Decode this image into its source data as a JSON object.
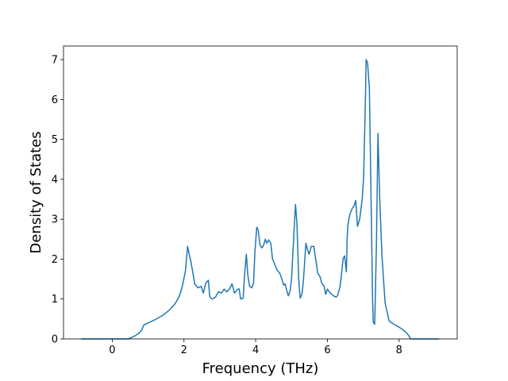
{
  "chart_data": {
    "type": "line",
    "xlabel": "Frequency (THz)",
    "ylabel": "Density of States",
    "x": [
      -0.86,
      0.42,
      0.53,
      0.64,
      0.75,
      0.82,
      0.88,
      0.95,
      1.19,
      1.42,
      1.59,
      1.75,
      1.86,
      1.95,
      2.04,
      2.1,
      2.15,
      2.19,
      2.26,
      2.3,
      2.39,
      2.48,
      2.54,
      2.61,
      2.68,
      2.72,
      2.79,
      2.88,
      2.96,
      3.05,
      3.12,
      3.19,
      3.27,
      3.34,
      3.41,
      3.5,
      3.54,
      3.58,
      3.65,
      3.69,
      3.74,
      3.78,
      3.83,
      3.89,
      3.94,
      3.98,
      4.03,
      4.07,
      4.12,
      4.18,
      4.23,
      4.27,
      4.31,
      4.36,
      4.42,
      4.47,
      4.54,
      4.6,
      4.67,
      4.73,
      4.78,
      4.82,
      4.87,
      4.91,
      4.96,
      5.0,
      5.04,
      5.11,
      5.15,
      5.2,
      5.24,
      5.29,
      5.33,
      5.4,
      5.44,
      5.49,
      5.55,
      5.62,
      5.69,
      5.73,
      5.8,
      5.84,
      5.91,
      5.95,
      6.0,
      6.08,
      6.17,
      6.24,
      6.28,
      6.35,
      6.39,
      6.44,
      6.48,
      6.53,
      6.55,
      6.57,
      6.62,
      6.68,
      6.75,
      6.79,
      6.84,
      6.9,
      6.97,
      7.01,
      7.06,
      7.08,
      7.12,
      7.17,
      7.21,
      7.26,
      7.28,
      7.32,
      7.37,
      7.41,
      7.46,
      7.52,
      7.61,
      7.72,
      7.83,
      7.99,
      8.12,
      8.21,
      8.27,
      8.32,
      9.12
    ],
    "series": [
      {
        "color": "#1f77b4",
        "values": [
          0,
          0,
          0.03,
          0.08,
          0.15,
          0.22,
          0.35,
          0.38,
          0.48,
          0.6,
          0.72,
          0.88,
          1.05,
          1.3,
          1.7,
          2.32,
          2.1,
          1.95,
          1.6,
          1.38,
          1.28,
          1.32,
          1.15,
          1.4,
          1.47,
          1.05,
          1.0,
          1.05,
          1.18,
          1.15,
          1.25,
          1.18,
          1.25,
          1.38,
          1.15,
          1.25,
          1.25,
          1.0,
          1.02,
          1.6,
          2.12,
          1.6,
          1.32,
          1.28,
          1.4,
          2.2,
          2.8,
          2.72,
          2.35,
          2.28,
          2.38,
          2.5,
          2.4,
          2.48,
          2.4,
          2.0,
          1.85,
          1.72,
          1.65,
          1.5,
          1.35,
          1.38,
          1.2,
          1.08,
          1.2,
          1.5,
          2.2,
          3.37,
          2.9,
          1.5,
          1.02,
          1.12,
          1.45,
          2.4,
          2.25,
          2.12,
          2.32,
          2.32,
          1.9,
          1.65,
          1.55,
          1.4,
          1.32,
          1.12,
          1.25,
          1.15,
          1.08,
          1.05,
          1.08,
          1.3,
          1.6,
          2.02,
          2.08,
          1.68,
          2.5,
          2.85,
          3.1,
          3.25,
          3.35,
          3.47,
          2.82,
          3.0,
          3.5,
          4.05,
          6.0,
          7.0,
          6.92,
          6.3,
          4.0,
          1.0,
          0.42,
          0.37,
          2.5,
          5.15,
          3.5,
          2.1,
          0.9,
          0.45,
          0.38,
          0.3,
          0.22,
          0.15,
          0.08,
          0,
          0
        ]
      }
    ],
    "xlim": [
      -1.36,
      9.62
    ],
    "xticks": [
      0,
      2,
      4,
      6,
      8
    ],
    "ylim": [
      0,
      7.34
    ],
    "yticks": [
      0,
      1,
      2,
      3,
      4,
      5,
      6,
      7
    ]
  }
}
